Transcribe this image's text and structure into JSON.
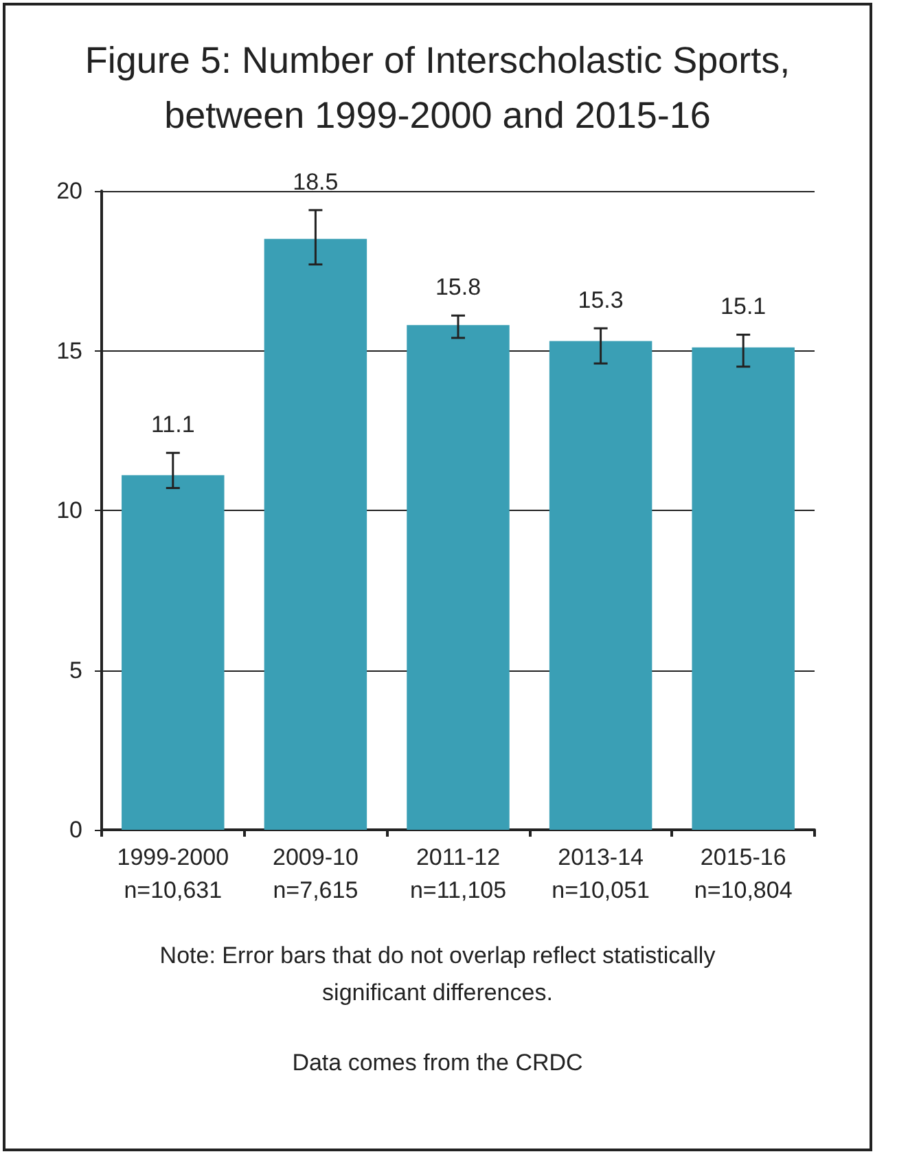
{
  "chart_data": {
    "type": "bar",
    "title": "Figure 5: Number of Interscholastic Sports, between 1999-2000 and 2015-16",
    "categories": [
      "1999-2000\nn=10,631",
      "2009-10\nn=7,615",
      "2011-12\nn=11,105",
      "2013-14\nn=10,051",
      "2015-16\nn=10,804"
    ],
    "values": [
      11.1,
      18.5,
      15.8,
      15.3,
      15.1
    ],
    "errors": [
      [
        10.7,
        11.8
      ],
      [
        17.7,
        19.4
      ],
      [
        15.4,
        16.1
      ],
      [
        14.6,
        15.7
      ],
      [
        14.5,
        15.5
      ]
    ],
    "color": "#3a9fb5",
    "ylim": [
      0,
      20
    ],
    "yticks": [
      0,
      5,
      10,
      15,
      20
    ],
    "grid": "y",
    "data_labels": true,
    "annotations": [
      "Note: Error bars that do not overlap reflect statistically significant differences.",
      "Data comes from the CRDC"
    ]
  }
}
